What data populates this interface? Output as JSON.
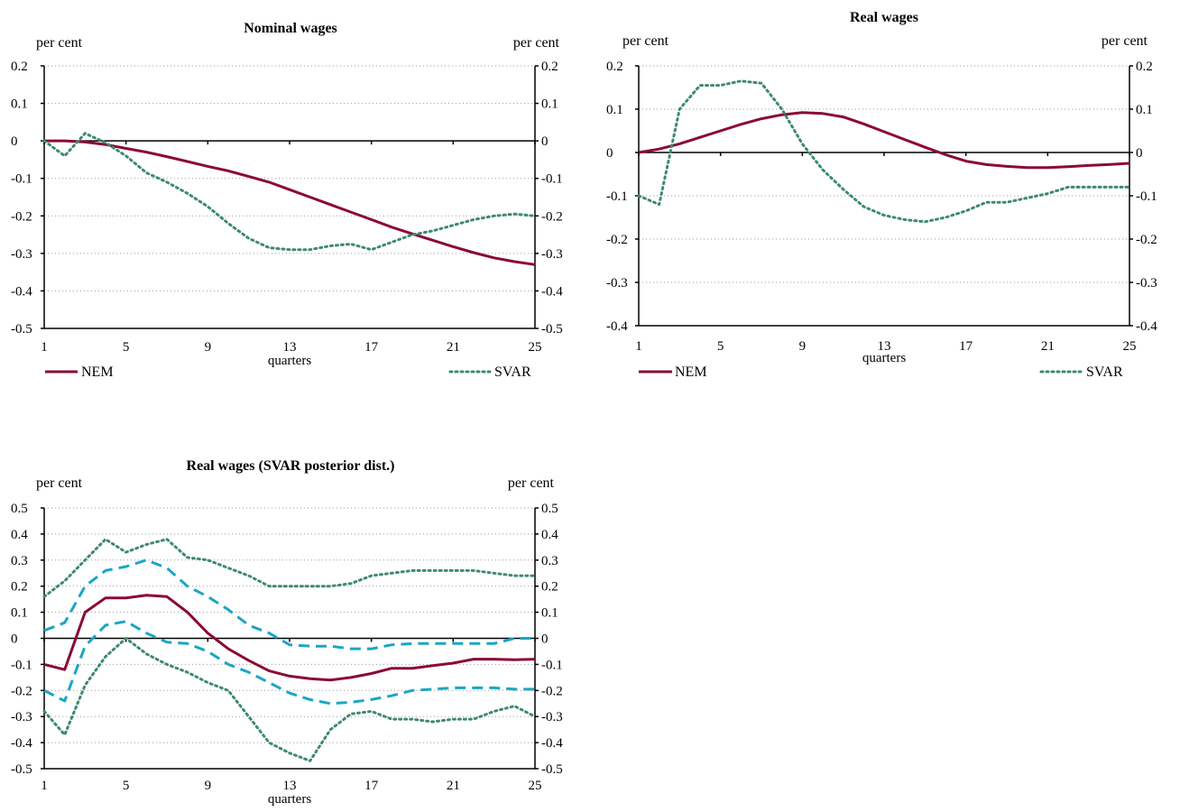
{
  "colors": {
    "nem": "#8b0a32",
    "svar": "#3e8a6e",
    "band": "#1aa6c4",
    "grid": "#999999",
    "axis": "#000000"
  },
  "chart_data": [
    {
      "type": "line",
      "title": "Nominal wages",
      "left_unit": "per cent",
      "right_unit": "per cent",
      "xlabel": "quarters",
      "x_ticks": [
        1,
        5,
        9,
        13,
        17,
        21,
        25
      ],
      "ylim": [
        -0.5,
        0.2
      ],
      "y_ticks": [
        0.2,
        0.1,
        0,
        -0.1,
        -0.2,
        -0.3,
        -0.4,
        -0.5
      ],
      "y_tick_labels": [
        "0.2",
        "0.1",
        "0",
        "-0.1",
        "-0.2",
        "-0.3",
        "-0.4",
        "-0.5"
      ],
      "grid": true,
      "legend_position": "bottom",
      "legend_labels": [
        "NEM",
        "SVAR"
      ],
      "series": [
        {
          "name": "NEM",
          "style": "solid",
          "color_key": "nem",
          "x": [
            1,
            2,
            3,
            4,
            5,
            6,
            7,
            8,
            9,
            10,
            11,
            12,
            13,
            14,
            15,
            16,
            17,
            18,
            19,
            20,
            21,
            22,
            23,
            24,
            25
          ],
          "values": [
            0,
            0,
            -0.003,
            -0.01,
            -0.02,
            -0.03,
            -0.042,
            -0.055,
            -0.068,
            -0.08,
            -0.095,
            -0.11,
            -0.13,
            -0.15,
            -0.17,
            -0.19,
            -0.21,
            -0.23,
            -0.248,
            -0.265,
            -0.282,
            -0.298,
            -0.312,
            -0.322,
            -0.33
          ]
        },
        {
          "name": "SVAR",
          "style": "dotted",
          "color_key": "svar",
          "x": [
            1,
            2,
            3,
            4,
            5,
            6,
            7,
            8,
            9,
            10,
            11,
            12,
            13,
            14,
            15,
            16,
            17,
            18,
            19,
            20,
            21,
            22,
            23,
            24,
            25
          ],
          "values": [
            0,
            -0.04,
            0.02,
            -0.005,
            -0.04,
            -0.085,
            -0.11,
            -0.14,
            -0.175,
            -0.22,
            -0.26,
            -0.285,
            -0.29,
            -0.29,
            -0.28,
            -0.275,
            -0.29,
            -0.27,
            -0.25,
            -0.24,
            -0.225,
            -0.21,
            -0.2,
            -0.195,
            -0.2
          ]
        }
      ]
    },
    {
      "type": "line",
      "title": "Real wages",
      "left_unit": "per cent",
      "right_unit": "per cent",
      "xlabel": "quarters",
      "x_ticks": [
        1,
        5,
        9,
        13,
        17,
        21,
        25
      ],
      "ylim": [
        -0.4,
        0.2
      ],
      "y_ticks": [
        0.2,
        0.1,
        0,
        -0.1,
        -0.2,
        -0.3,
        -0.4
      ],
      "y_tick_labels": [
        "0.2",
        "0.1",
        "0",
        "-0.1",
        "-0.2",
        "-0.3",
        "-0.4"
      ],
      "grid": true,
      "legend_position": "bottom",
      "legend_labels": [
        "NEM",
        "SVAR"
      ],
      "series": [
        {
          "name": "NEM",
          "style": "solid",
          "color_key": "nem",
          "x": [
            1,
            2,
            3,
            4,
            5,
            6,
            7,
            8,
            9,
            10,
            11,
            12,
            13,
            14,
            15,
            16,
            17,
            18,
            19,
            20,
            21,
            22,
            23,
            24,
            25
          ],
          "values": [
            0,
            0.008,
            0.02,
            0.035,
            0.05,
            0.065,
            0.078,
            0.087,
            0.092,
            0.09,
            0.082,
            0.066,
            0.048,
            0.03,
            0.012,
            -0.005,
            -0.02,
            -0.028,
            -0.032,
            -0.035,
            -0.035,
            -0.033,
            -0.03,
            -0.028,
            -0.025
          ]
        },
        {
          "name": "SVAR",
          "style": "dotted",
          "color_key": "svar",
          "x": [
            1,
            2,
            3,
            4,
            5,
            6,
            7,
            8,
            9,
            10,
            11,
            12,
            13,
            14,
            15,
            16,
            17,
            18,
            19,
            20,
            21,
            22,
            23,
            24,
            25
          ],
          "values": [
            -0.1,
            -0.12,
            0.1,
            0.155,
            0.155,
            0.165,
            0.16,
            0.1,
            0.02,
            -0.04,
            -0.085,
            -0.125,
            -0.145,
            -0.155,
            -0.16,
            -0.15,
            -0.135,
            -0.115,
            -0.115,
            -0.105,
            -0.095,
            -0.08,
            -0.08,
            -0.08,
            -0.08
          ]
        }
      ]
    },
    {
      "type": "line",
      "title": "Real wages (SVAR posterior dist.)",
      "left_unit": "per cent",
      "right_unit": "per cent",
      "xlabel": "quarters",
      "x_ticks": [
        1,
        5,
        9,
        13,
        17,
        21,
        25
      ],
      "ylim": [
        -0.5,
        0.5
      ],
      "y_ticks": [
        0.5,
        0.4,
        0.3,
        0.2,
        0.1,
        0,
        -0.1,
        -0.2,
        -0.3,
        -0.4,
        -0.5
      ],
      "y_tick_labels": [
        "0.5",
        "0.4",
        "0.3",
        "0.2",
        "0.1",
        "0",
        "-0.1",
        "-0.2",
        "-0.3",
        "-0.4",
        "-0.5"
      ],
      "grid": true,
      "series": [
        {
          "style": "solid",
          "color_key": "nem",
          "x": [
            1,
            2,
            3,
            4,
            5,
            6,
            7,
            8,
            9,
            10,
            11,
            12,
            13,
            14,
            15,
            16,
            17,
            18,
            19,
            20,
            21,
            22,
            23,
            24,
            25
          ],
          "values": [
            -0.1,
            -0.12,
            0.1,
            0.155,
            0.155,
            0.165,
            0.16,
            0.1,
            0.02,
            -0.04,
            -0.085,
            -0.125,
            -0.145,
            -0.155,
            -0.16,
            -0.15,
            -0.135,
            -0.115,
            -0.115,
            -0.105,
            -0.095,
            -0.08,
            -0.08,
            -0.082,
            -0.08
          ]
        },
        {
          "style": "dashed",
          "color_key": "band",
          "x": [
            1,
            2,
            3,
            4,
            5,
            6,
            7,
            8,
            9,
            10,
            11,
            12,
            13,
            14,
            15,
            16,
            17,
            18,
            19,
            20,
            21,
            22,
            23,
            24,
            25
          ],
          "values": [
            0.03,
            0.06,
            0.2,
            0.26,
            0.275,
            0.3,
            0.27,
            0.2,
            0.16,
            0.11,
            0.05,
            0.02,
            -0.025,
            -0.03,
            -0.03,
            -0.04,
            -0.04,
            -0.025,
            -0.02,
            -0.02,
            -0.02,
            -0.02,
            -0.02,
            0,
            0
          ]
        },
        {
          "style": "dashed",
          "color_key": "band",
          "x": [
            1,
            2,
            3,
            4,
            5,
            6,
            7,
            8,
            9,
            10,
            11,
            12,
            13,
            14,
            15,
            16,
            17,
            18,
            19,
            20,
            21,
            22,
            23,
            24,
            25
          ],
          "values": [
            -0.2,
            -0.24,
            -0.03,
            0.05,
            0.065,
            0.02,
            -0.015,
            -0.02,
            -0.05,
            -0.1,
            -0.13,
            -0.17,
            -0.21,
            -0.235,
            -0.25,
            -0.245,
            -0.235,
            -0.22,
            -0.2,
            -0.195,
            -0.19,
            -0.19,
            -0.19,
            -0.195,
            -0.195
          ]
        },
        {
          "style": "dotted",
          "color_key": "svar",
          "x": [
            1,
            2,
            3,
            4,
            5,
            6,
            7,
            8,
            9,
            10,
            11,
            12,
            13,
            14,
            15,
            16,
            17,
            18,
            19,
            20,
            21,
            22,
            23,
            24,
            25
          ],
          "values": [
            0.16,
            0.22,
            0.3,
            0.38,
            0.33,
            0.36,
            0.38,
            0.31,
            0.3,
            0.27,
            0.24,
            0.2,
            0.2,
            0.2,
            0.2,
            0.21,
            0.24,
            0.25,
            0.26,
            0.26,
            0.26,
            0.26,
            0.25,
            0.24,
            0.24
          ]
        },
        {
          "style": "dotted",
          "color_key": "svar",
          "x": [
            1,
            2,
            3,
            4,
            5,
            6,
            7,
            8,
            9,
            10,
            11,
            12,
            13,
            14,
            15,
            16,
            17,
            18,
            19,
            20,
            21,
            22,
            23,
            24,
            25
          ],
          "values": [
            -0.28,
            -0.37,
            -0.18,
            -0.07,
            0,
            -0.06,
            -0.1,
            -0.13,
            -0.17,
            -0.2,
            -0.3,
            -0.4,
            -0.44,
            -0.47,
            -0.35,
            -0.29,
            -0.28,
            -0.31,
            -0.31,
            -0.32,
            -0.31,
            -0.31,
            -0.28,
            -0.26,
            -0.3
          ]
        }
      ]
    }
  ]
}
